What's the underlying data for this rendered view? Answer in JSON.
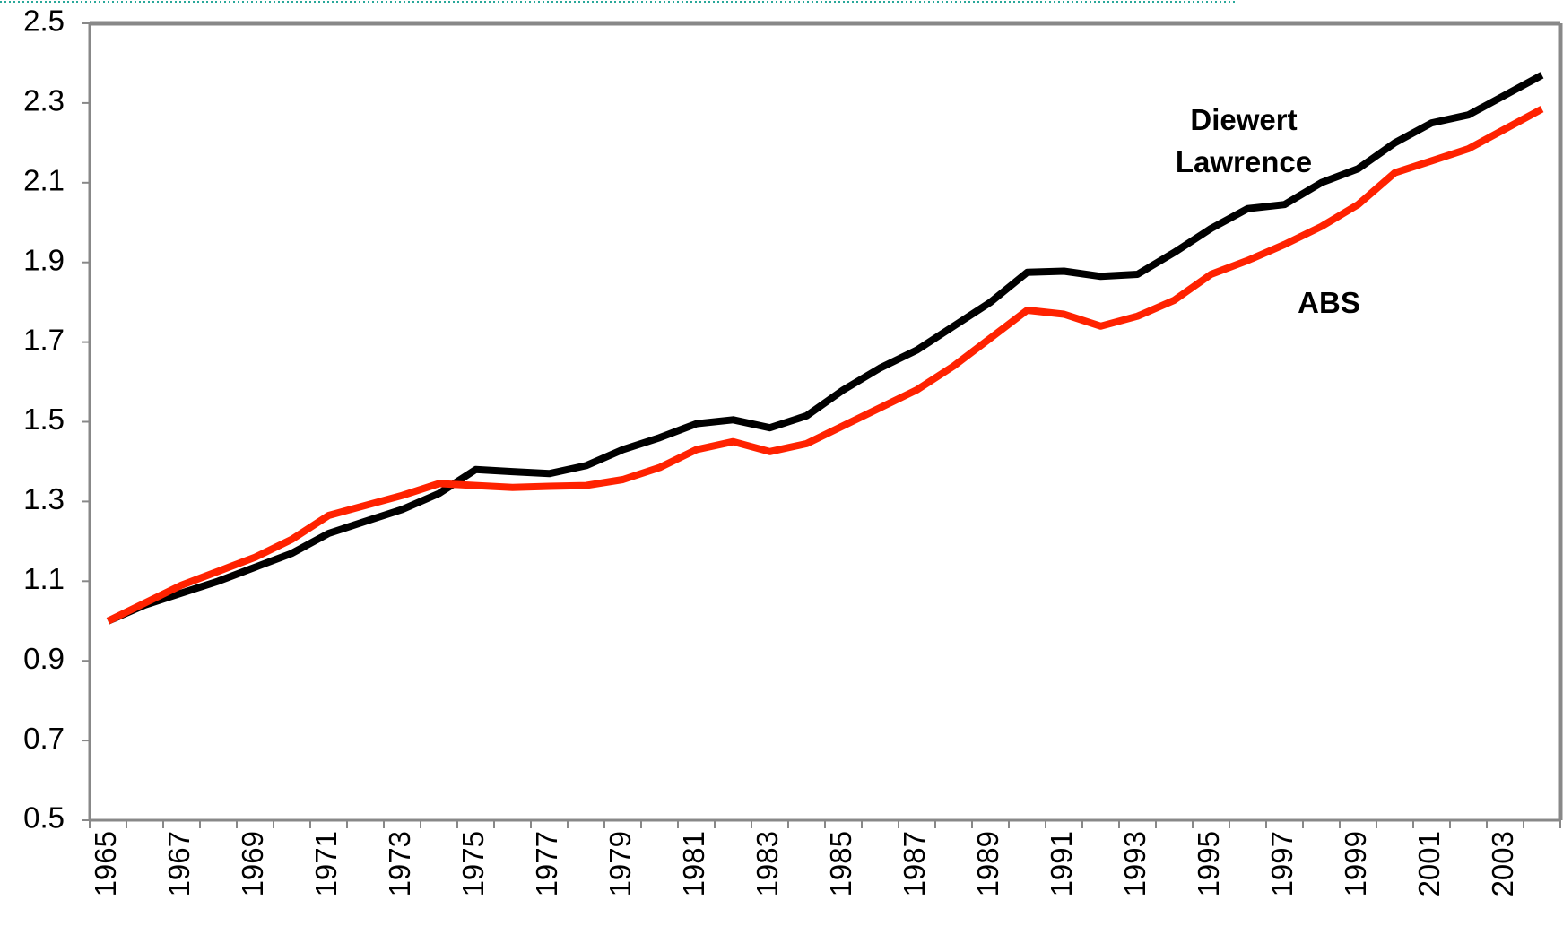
{
  "chart_data": {
    "type": "line",
    "categories": [
      "1965",
      null,
      "1967",
      null,
      "1969",
      null,
      "1971",
      null,
      "1973",
      null,
      "1975",
      null,
      "1977",
      null,
      "1979",
      null,
      "1981",
      null,
      "1983",
      null,
      "1985",
      null,
      "1987",
      null,
      "1989",
      null,
      "1991",
      null,
      "1993",
      null,
      "1995",
      null,
      "1997",
      null,
      "1999",
      null,
      "2001",
      null,
      "2003",
      null
    ],
    "series": [
      {
        "name": "Diewert Lawrence",
        "color": "#000000",
        "values": [
          1.0,
          1.04,
          1.07,
          1.1,
          1.135,
          1.17,
          1.22,
          1.25,
          1.28,
          1.32,
          1.38,
          1.375,
          1.37,
          1.39,
          1.43,
          1.46,
          1.495,
          1.505,
          1.485,
          1.515,
          1.58,
          1.635,
          1.68,
          1.74,
          1.8,
          1.875,
          1.878,
          1.865,
          1.87,
          1.925,
          1.985,
          2.035,
          2.045,
          2.1,
          2.135,
          2.2,
          2.25,
          2.27,
          2.32,
          2.37
        ]
      },
      {
        "name": "ABS",
        "color": "#ff2200",
        "values": [
          1.0,
          1.045,
          1.09,
          1.125,
          1.16,
          1.205,
          1.265,
          1.29,
          1.315,
          1.345,
          1.34,
          1.335,
          1.338,
          1.34,
          1.355,
          1.385,
          1.43,
          1.45,
          1.425,
          1.445,
          1.49,
          1.535,
          1.58,
          1.64,
          1.71,
          1.78,
          1.77,
          1.74,
          1.765,
          1.805,
          1.87,
          1.905,
          1.945,
          1.99,
          2.045,
          2.125,
          2.155,
          2.185,
          2.235,
          2.285
        ]
      }
    ],
    "ylim": [
      0.5,
      2.5
    ],
    "yticks": [
      0.5,
      0.7,
      0.9,
      1.1,
      1.3,
      1.5,
      1.7,
      1.9,
      2.1,
      2.3,
      2.5
    ],
    "grid": false
  }
}
